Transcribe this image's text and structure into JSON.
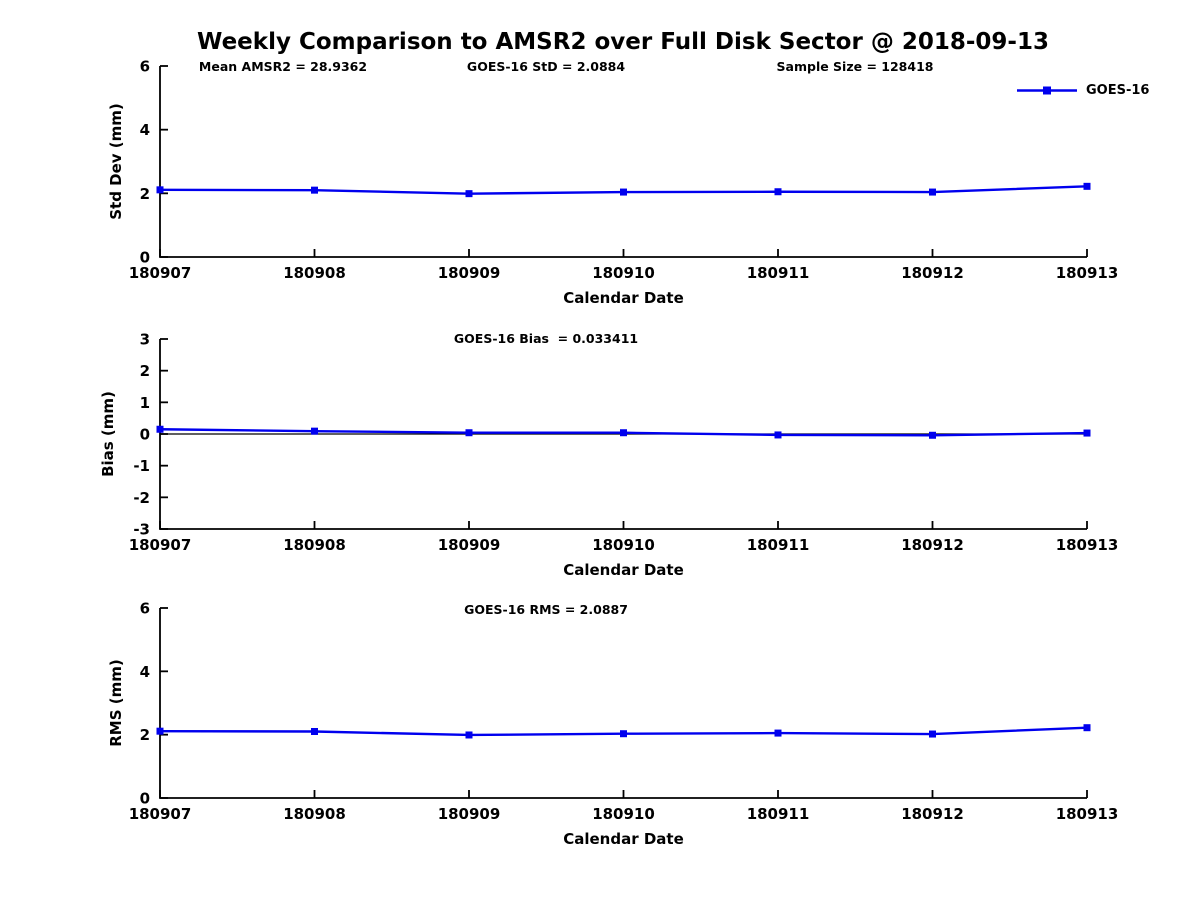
{
  "figure": {
    "title": "Weekly Comparison to AMSR2 over Full Disk Sector @ 2018-09-13",
    "legend_label": "GOES-16",
    "colors": {
      "line": "#0000ee",
      "axis": "#000000",
      "text": "#000000",
      "background": "#ffffff"
    }
  },
  "chart_data": [
    {
      "type": "line",
      "title": "",
      "categories": [
        "180907",
        "180908",
        "180909",
        "180910",
        "180911",
        "180912",
        "180913"
      ],
      "series": [
        {
          "name": "GOES-16",
          "values": [
            2.11,
            2.1,
            1.99,
            2.04,
            2.05,
            2.04,
            2.22
          ]
        }
      ],
      "xlabel": "Calendar Date",
      "ylabel": "Std Dev (mm)",
      "ylim": [
        0,
        6
      ],
      "yticks": [
        0,
        2,
        4,
        6
      ],
      "grid": false,
      "marker": "square",
      "legend_position": "upper-right",
      "annotations": [
        "Mean AMSR2 = 28.9362",
        "GOES-16 StD = 2.0884",
        "Sample Size = 128418"
      ]
    },
    {
      "type": "line",
      "title": "",
      "categories": [
        "180907",
        "180908",
        "180909",
        "180910",
        "180911",
        "180912",
        "180913"
      ],
      "series": [
        {
          "name": "GOES-16",
          "values": [
            0.15,
            0.09,
            0.04,
            0.04,
            -0.03,
            -0.04,
            0.03
          ]
        }
      ],
      "xlabel": "Calendar Date",
      "ylabel": "Bias (mm)",
      "ylim": [
        -3,
        3
      ],
      "yticks": [
        -3,
        -2,
        -1,
        0,
        1,
        2,
        3
      ],
      "grid": false,
      "marker": "square",
      "zero_line": true,
      "annotations": [
        "GOES-16 Bias  = 0.033411"
      ]
    },
    {
      "type": "line",
      "title": "",
      "categories": [
        "180907",
        "180908",
        "180909",
        "180910",
        "180911",
        "180912",
        "180913"
      ],
      "series": [
        {
          "name": "GOES-16",
          "values": [
            2.11,
            2.1,
            1.99,
            2.03,
            2.05,
            2.02,
            2.22
          ]
        }
      ],
      "xlabel": "Calendar Date",
      "ylabel": "RMS (mm)",
      "ylim": [
        0,
        6
      ],
      "yticks": [
        0,
        2,
        4,
        6
      ],
      "grid": false,
      "marker": "square",
      "annotations": [
        "GOES-16 RMS = 2.0887"
      ]
    }
  ]
}
